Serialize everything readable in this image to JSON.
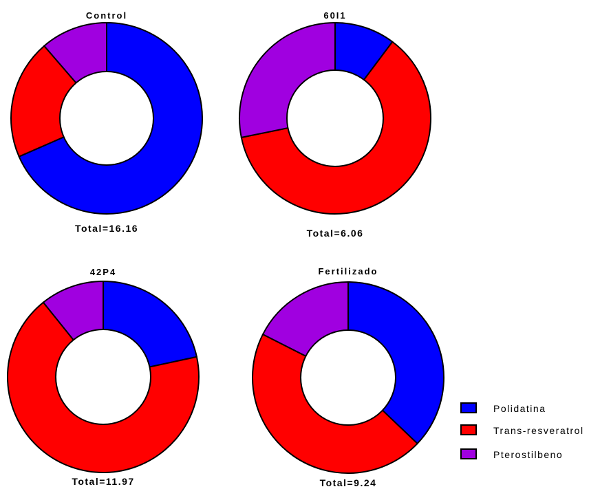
{
  "chart_data": [
    {
      "type": "pie",
      "title": "Control",
      "total_label": "Total=16.16",
      "series": [
        {
          "name": "Polidatina",
          "value": 11.06
        },
        {
          "name": "Trans-resveratrol",
          "value": 3.27
        },
        {
          "name": "Pterostilbeno",
          "value": 1.83
        }
      ]
    },
    {
      "type": "pie",
      "title": "60I1",
      "total_label": "Total=6.06",
      "series": [
        {
          "name": "Polidatina",
          "value": 0.62
        },
        {
          "name": "Trans-resveratrol",
          "value": 3.73
        },
        {
          "name": "Pterostilbeno",
          "value": 1.71
        }
      ]
    },
    {
      "type": "pie",
      "title": "42P4",
      "total_label": "Total=11.97",
      "series": [
        {
          "name": "Polidatina",
          "value": 2.59
        },
        {
          "name": "Trans-resveratrol",
          "value": 8.09
        },
        {
          "name": "Pterostilbeno",
          "value": 1.29
        }
      ]
    },
    {
      "type": "pie",
      "title": "Fertilizado",
      "total_label": "Total=9.24",
      "series": [
        {
          "name": "Polidatina",
          "value": 3.43
        },
        {
          "name": "Trans-resveratrol",
          "value": 4.19
        },
        {
          "name": "Pterostilbeno",
          "value": 1.62
        }
      ]
    }
  ],
  "legend": {
    "placement": "bottom-right",
    "items": [
      {
        "label": "Polidatina",
        "color": "#0000ff"
      },
      {
        "label": "Trans-resveratrol",
        "color": "#ff0000"
      },
      {
        "label": "Pterostilbeno",
        "color": "#a000e0"
      }
    ]
  }
}
